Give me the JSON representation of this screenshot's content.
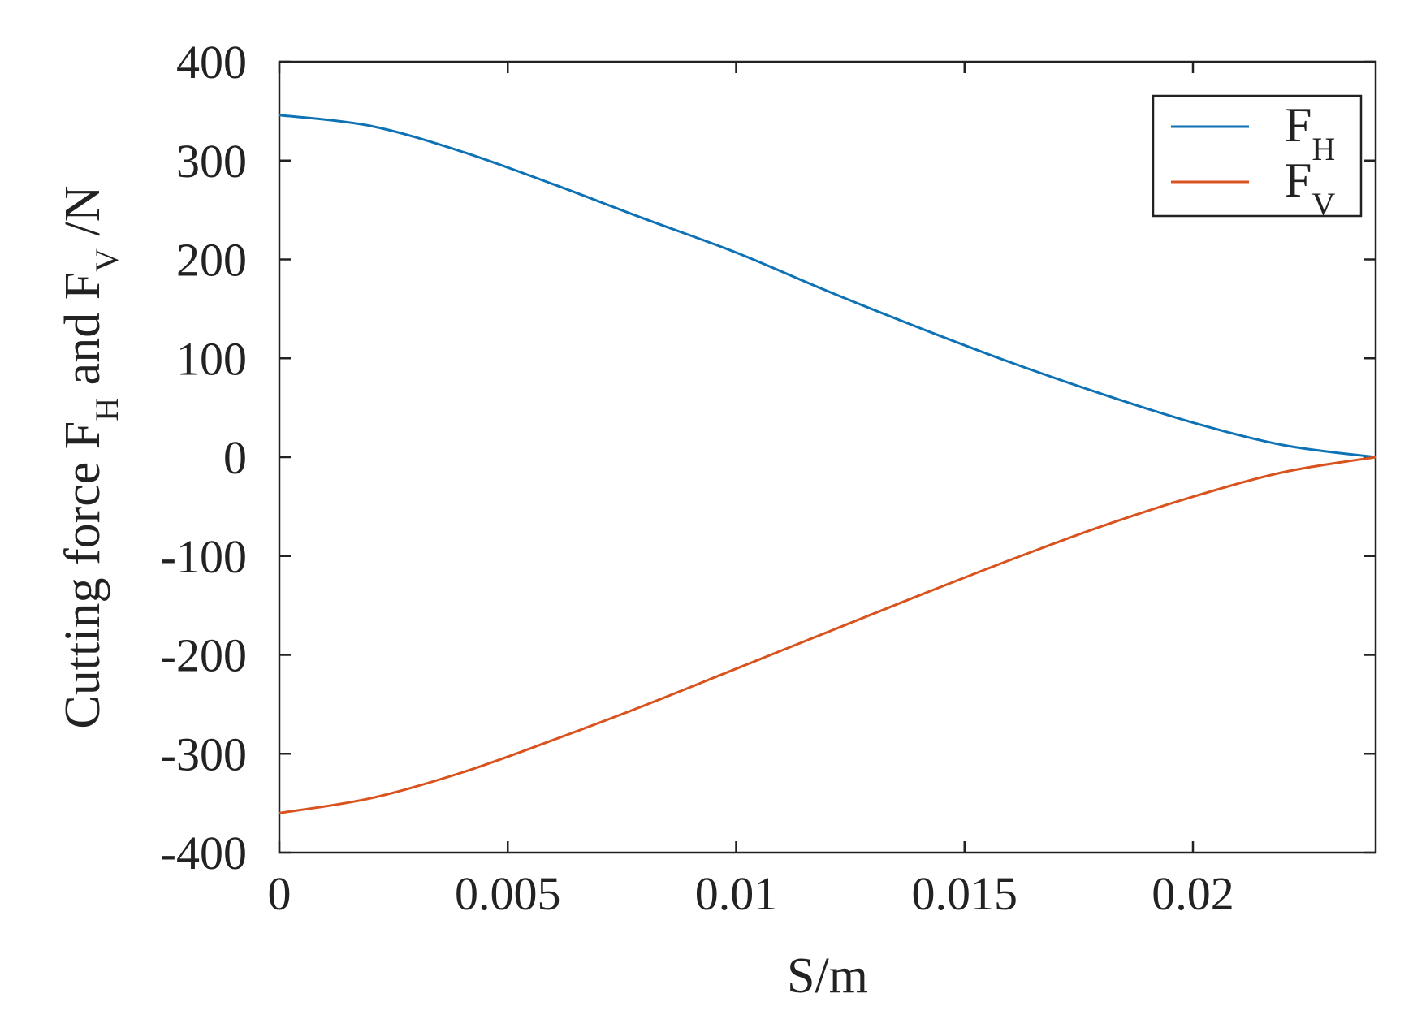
{
  "chart_data": {
    "type": "line",
    "title": "",
    "xlabel": "S/m",
    "ylabel": {
      "parts": [
        "Cutting force F",
        "H",
        " and F",
        "V",
        " /N"
      ]
    },
    "xlim": [
      0,
      0.024
    ],
    "ylim": [
      -400,
      400
    ],
    "xticks": [
      0,
      0.005,
      0.01,
      0.015,
      0.02
    ],
    "xtick_labels": [
      "0",
      "0.005",
      "0.01",
      "0.015",
      "0.02"
    ],
    "yticks": [
      400,
      300,
      200,
      100,
      0,
      -100,
      -200,
      -300,
      -400
    ],
    "ytick_labels": [
      "400",
      "300",
      "200",
      "100",
      "0",
      "-100",
      "-200",
      "-300",
      "-400"
    ],
    "grid": false,
    "legend_position": "top-right",
    "series": [
      {
        "name": "FH",
        "name_main": "F",
        "name_sub": "H",
        "color": "#0e72b5",
        "x": [
          0,
          0.002,
          0.004,
          0.006,
          0.008,
          0.01,
          0.012,
          0.014,
          0.016,
          0.018,
          0.02,
          0.022,
          0.024
        ],
        "y": [
          346,
          335,
          309,
          276,
          241,
          207,
          168,
          131,
          96,
          64,
          35,
          12,
          0
        ]
      },
      {
        "name": "FV",
        "name_main": "F",
        "name_sub": "V",
        "color": "#d9531e",
        "x": [
          0,
          0.002,
          0.004,
          0.006,
          0.008,
          0.01,
          0.012,
          0.014,
          0.016,
          0.018,
          0.02,
          0.022,
          0.024
        ],
        "y": [
          -360,
          -345,
          -319,
          -286,
          -251,
          -214,
          -177,
          -140,
          -104,
          -70,
          -40,
          -15,
          0
        ]
      }
    ]
  }
}
